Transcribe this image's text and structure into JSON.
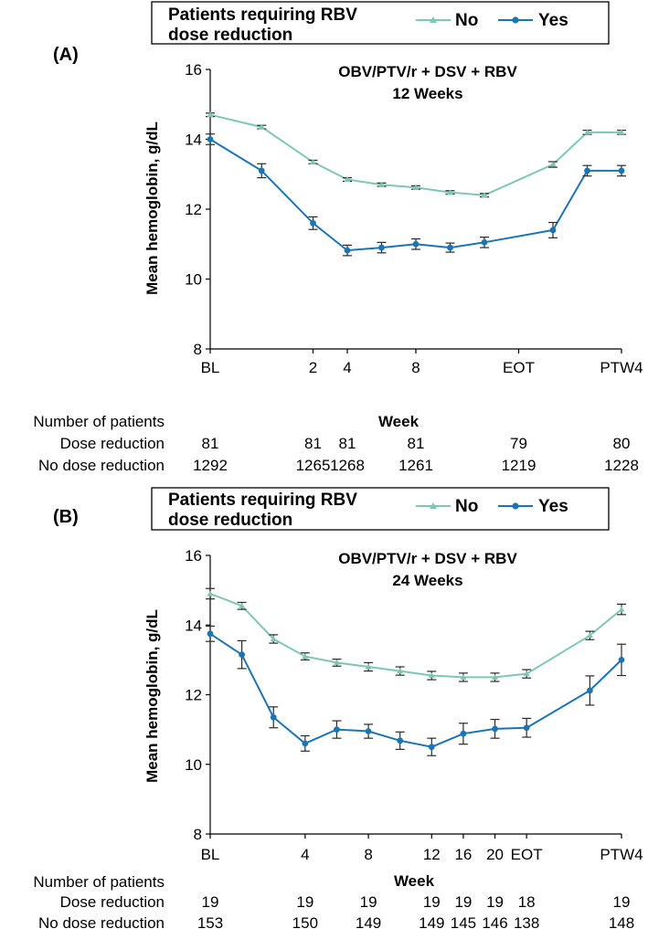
{
  "colors": {
    "no": "#7fc6b4",
    "yes": "#1b75b4",
    "axis": "#000000",
    "error": "#2a2a2a"
  },
  "legend": {
    "title_line1": "Patients requiring RBV",
    "title_line2": "dose reduction",
    "no_label": "No",
    "yes_label": "Yes"
  },
  "table_labels": {
    "header": "Number of patients",
    "dose": "Dose reduction",
    "nodose": "No dose reduction"
  },
  "chart_data": [
    {
      "panel": "(A)",
      "type": "line",
      "title_line1": "OBV/PTV/r + DSV + RBV",
      "title_line2": "12 Weeks",
      "ylabel": "Mean hemoglobin, g/dL",
      "xlabel": "Week",
      "ylim": [
        8,
        16
      ],
      "yticks": [
        "8",
        "10",
        "12",
        "14",
        "16"
      ],
      "x_index_range": [
        0,
        12
      ],
      "xticks": [
        {
          "i": 0,
          "label": "BL"
        },
        {
          "i": 3,
          "label": "2"
        },
        {
          "i": 4,
          "label": "4"
        },
        {
          "i": 6,
          "label": "8"
        },
        {
          "i": 9,
          "label": "EOT"
        },
        {
          "i": 12,
          "label": "PTW4"
        }
      ],
      "series": [
        {
          "name": "No",
          "x": [
            0,
            1.5,
            3,
            4,
            5,
            6,
            7,
            8,
            10,
            11,
            12
          ],
          "values": [
            14.7,
            14.35,
            13.35,
            12.85,
            12.7,
            12.62,
            12.48,
            12.4,
            13.28,
            14.2,
            14.2
          ],
          "err": [
            0.05,
            0.05,
            0.05,
            0.05,
            0.05,
            0.05,
            0.05,
            0.05,
            0.08,
            0.06,
            0.06
          ]
        },
        {
          "name": "Yes",
          "x": [
            0,
            1.5,
            3,
            4,
            5,
            6,
            7,
            8,
            10,
            11,
            12
          ],
          "values": [
            14.0,
            13.1,
            11.6,
            10.82,
            10.9,
            11.0,
            10.9,
            11.05,
            11.4,
            13.1,
            13.1
          ],
          "err": [
            0.15,
            0.2,
            0.18,
            0.15,
            0.15,
            0.15,
            0.13,
            0.15,
            0.22,
            0.15,
            0.15
          ]
        }
      ],
      "patients": [
        {
          "i": 0,
          "dose": "81",
          "nodose": "1292"
        },
        {
          "i": 3,
          "dose": "81",
          "nodose": "1265"
        },
        {
          "i": 4,
          "dose": "81",
          "nodose": "1268"
        },
        {
          "i": 6,
          "dose": "81",
          "nodose": "1261"
        },
        {
          "i": 9,
          "dose": "79",
          "nodose": "1219"
        },
        {
          "i": 12,
          "dose": "80",
          "nodose": "1228"
        }
      ]
    },
    {
      "panel": "(B)",
      "type": "line",
      "title_line1": "OBV/PTV/r + DSV + RBV",
      "title_line2": "24 Weeks",
      "ylabel": "Mean hemoglobin, g/dL",
      "xlabel": "Week",
      "ylim": [
        8,
        16
      ],
      "yticks": [
        "8",
        "10",
        "12",
        "14",
        "16"
      ],
      "x_index_range": [
        0,
        13
      ],
      "xticks": [
        {
          "i": 0,
          "label": "BL"
        },
        {
          "i": 3,
          "label": "4"
        },
        {
          "i": 5,
          "label": "8"
        },
        {
          "i": 7,
          "label": "12"
        },
        {
          "i": 8,
          "label": "16"
        },
        {
          "i": 9,
          "label": "20"
        },
        {
          "i": 10,
          "label": "EOT"
        },
        {
          "i": 13,
          "label": "PTW4"
        }
      ],
      "series": [
        {
          "name": "No",
          "x": [
            0,
            1,
            2,
            3,
            4,
            5,
            6,
            7,
            8,
            9,
            10,
            12,
            13
          ],
          "values": [
            14.9,
            14.55,
            13.6,
            13.1,
            12.92,
            12.8,
            12.68,
            12.55,
            12.5,
            12.5,
            12.6,
            13.7,
            14.45
          ],
          "err": [
            0.15,
            0.1,
            0.12,
            0.1,
            0.1,
            0.12,
            0.12,
            0.12,
            0.12,
            0.12,
            0.12,
            0.12,
            0.15
          ]
        },
        {
          "name": "Yes",
          "x": [
            0,
            1,
            2,
            3,
            4,
            5,
            6,
            7,
            8,
            9,
            10,
            12,
            13
          ],
          "values": [
            13.75,
            13.15,
            11.35,
            10.6,
            11.0,
            10.95,
            10.68,
            10.5,
            10.88,
            11.02,
            11.05,
            12.12,
            13.0
          ],
          "err": [
            0.22,
            0.4,
            0.3,
            0.22,
            0.25,
            0.2,
            0.25,
            0.25,
            0.3,
            0.27,
            0.27,
            0.42,
            0.45
          ]
        }
      ],
      "patients": [
        {
          "i": 0,
          "dose": "19",
          "nodose": "153"
        },
        {
          "i": 3,
          "dose": "19",
          "nodose": "150"
        },
        {
          "i": 5,
          "dose": "19",
          "nodose": "149"
        },
        {
          "i": 7,
          "dose": "19",
          "nodose": "149"
        },
        {
          "i": 8,
          "dose": "19",
          "nodose": "145"
        },
        {
          "i": 9,
          "dose": "19",
          "nodose": "146"
        },
        {
          "i": 10,
          "dose": "18",
          "nodose": "138"
        },
        {
          "i": 13,
          "dose": "19",
          "nodose": "148"
        }
      ]
    }
  ]
}
